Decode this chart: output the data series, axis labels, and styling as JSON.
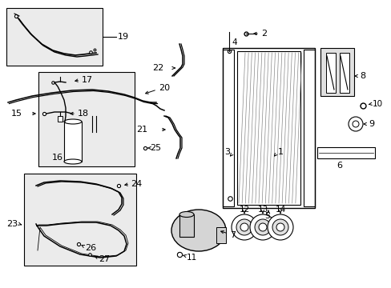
{
  "background_color": "#ffffff",
  "line_color": "#000000",
  "text_color": "#000000",
  "fig_w": 4.89,
  "fig_h": 3.6,
  "dpi": 100
}
